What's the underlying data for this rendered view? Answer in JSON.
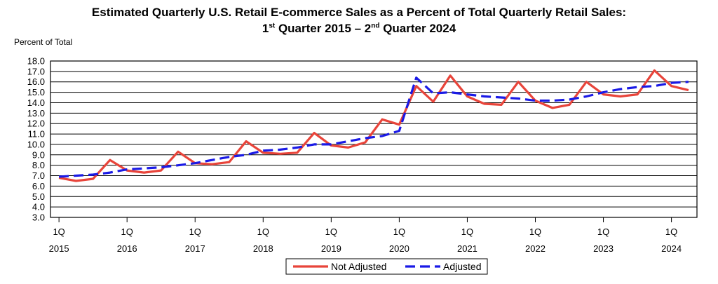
{
  "chart_data": {
    "type": "line",
    "title": {
      "line1": "Estimated Quarterly U.S. Retail E-commerce Sales as a Percent of Total Quarterly Retail Sales:",
      "line2_a": "1",
      "line2_a_sup": "st",
      "line2_b": " Quarter 2015 – 2",
      "line2_b_sup": "nd",
      "line2_c": " Quarter 2024"
    },
    "ylabel": "Percent of Total",
    "ylim": [
      3.0,
      18.0
    ],
    "ytick_step": 1.0,
    "yticks": [
      "3.0",
      "4.0",
      "5.0",
      "6.0",
      "7.0",
      "8.0",
      "9.0",
      "10.0",
      "11.0",
      "12.0",
      "13.0",
      "14.0",
      "15.0",
      "16.0",
      "17.0",
      "18.0"
    ],
    "grid": true,
    "x_period_labels": [
      {
        "quarter": "1Q",
        "year": "2015"
      },
      {
        "quarter": "1Q",
        "year": "2016"
      },
      {
        "quarter": "1Q",
        "year": "2017"
      },
      {
        "quarter": "1Q",
        "year": "2018"
      },
      {
        "quarter": "1Q",
        "year": "2019"
      },
      {
        "quarter": "1Q",
        "year": "2020"
      },
      {
        "quarter": "1Q",
        "year": "2021"
      },
      {
        "quarter": "1Q",
        "year": "2022"
      },
      {
        "quarter": "1Q",
        "year": "2023"
      },
      {
        "quarter": "1Q",
        "year": "2024"
      }
    ],
    "n_quarters": 38,
    "legend_position": "bottom-center",
    "series": [
      {
        "name": "Not Adjusted",
        "color": "#E8443A",
        "style": "solid",
        "values": [
          6.8,
          6.5,
          6.7,
          8.5,
          7.5,
          7.3,
          7.5,
          9.3,
          8.2,
          8.1,
          8.3,
          10.3,
          9.2,
          9.1,
          9.2,
          11.1,
          9.9,
          9.7,
          10.2,
          12.4,
          11.9,
          15.6,
          14.1,
          16.6,
          14.6,
          13.9,
          13.8,
          16.0,
          14.2,
          13.5,
          13.8,
          16.0,
          14.8,
          14.6,
          14.8,
          17.1,
          15.6,
          15.2
        ]
      },
      {
        "name": "Adjusted",
        "color": "#1A1AE6",
        "style": "dashed",
        "values": [
          6.9,
          7.0,
          7.1,
          7.3,
          7.6,
          7.7,
          7.8,
          8.0,
          8.2,
          8.5,
          8.8,
          9.0,
          9.4,
          9.5,
          9.7,
          10.0,
          10.0,
          10.3,
          10.6,
          10.8,
          11.3,
          16.4,
          14.9,
          15.0,
          14.8,
          14.6,
          14.5,
          14.4,
          14.2,
          14.2,
          14.3,
          14.6,
          15.0,
          15.3,
          15.5,
          15.6,
          15.9,
          16.0
        ]
      }
    ]
  }
}
